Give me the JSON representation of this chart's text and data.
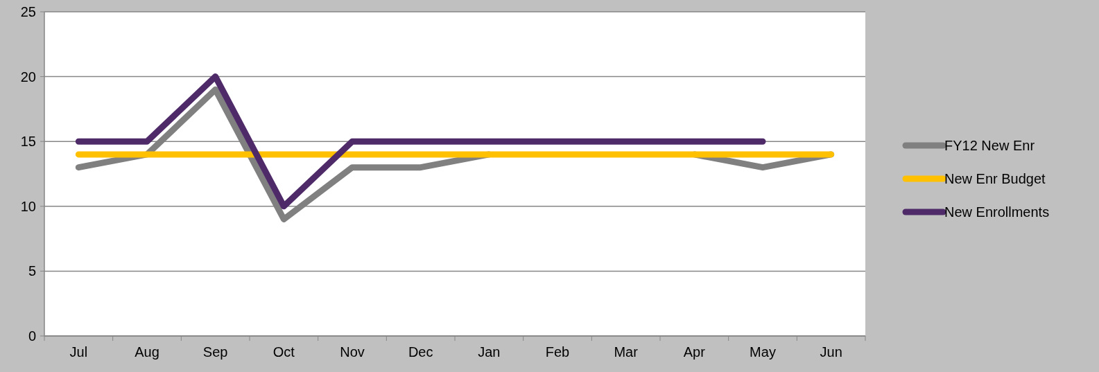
{
  "chart_data": {
    "type": "line",
    "categories": [
      "Jul",
      "Aug",
      "Sep",
      "Oct",
      "Nov",
      "Dec",
      "Jan",
      "Feb",
      "Mar",
      "Apr",
      "May",
      "Jun"
    ],
    "series": [
      {
        "name": "FY12 New Enr",
        "color": "#808080",
        "values": [
          13,
          14,
          19,
          9,
          13,
          13,
          14,
          null,
          null,
          14,
          13,
          14
        ]
      },
      {
        "name": "New Enr Budget",
        "color": "#ffc000",
        "values": [
          14,
          14,
          14,
          14,
          14,
          14,
          14,
          14,
          14,
          14,
          14,
          14
        ]
      },
      {
        "name": "New Enrollments",
        "color": "#4f2a68",
        "values": [
          15,
          15,
          20,
          10,
          15,
          15,
          15,
          15,
          15,
          15,
          15,
          null
        ]
      }
    ],
    "ylim": [
      0,
      25
    ],
    "yticks": [
      0,
      5,
      10,
      15,
      20,
      25
    ],
    "grid": "y",
    "legend": "right",
    "marker": "none",
    "line_style": "solid"
  }
}
